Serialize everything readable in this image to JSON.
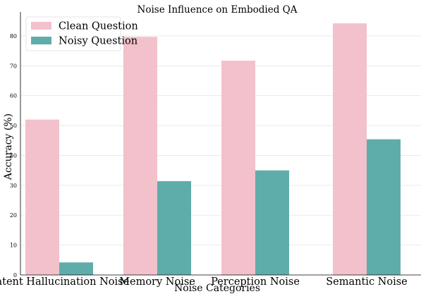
{
  "chart_data": {
    "type": "bar",
    "title": "Noise Influence on Embodied QA",
    "xlabel": "Noise Categories",
    "ylabel": "Accuracy (%)",
    "categories": [
      "Latent Hallucination Noise",
      "Memory Noise",
      "Perception Noise",
      "Semantic Noise"
    ],
    "series": [
      {
        "name": "Clean Question",
        "color": "#f2c1cb",
        "values": [
          52,
          79.7,
          71.7,
          84.2
        ]
      },
      {
        "name": "Noisy Question",
        "color": "#5fadaa",
        "values": [
          4.2,
          31.4,
          35,
          45.4
        ]
      }
    ],
    "ylim": [
      0,
      88
    ],
    "yticks": [
      0,
      10,
      20,
      30,
      40,
      50,
      60,
      70,
      80
    ],
    "grid": true,
    "legend_position": "top-left"
  }
}
